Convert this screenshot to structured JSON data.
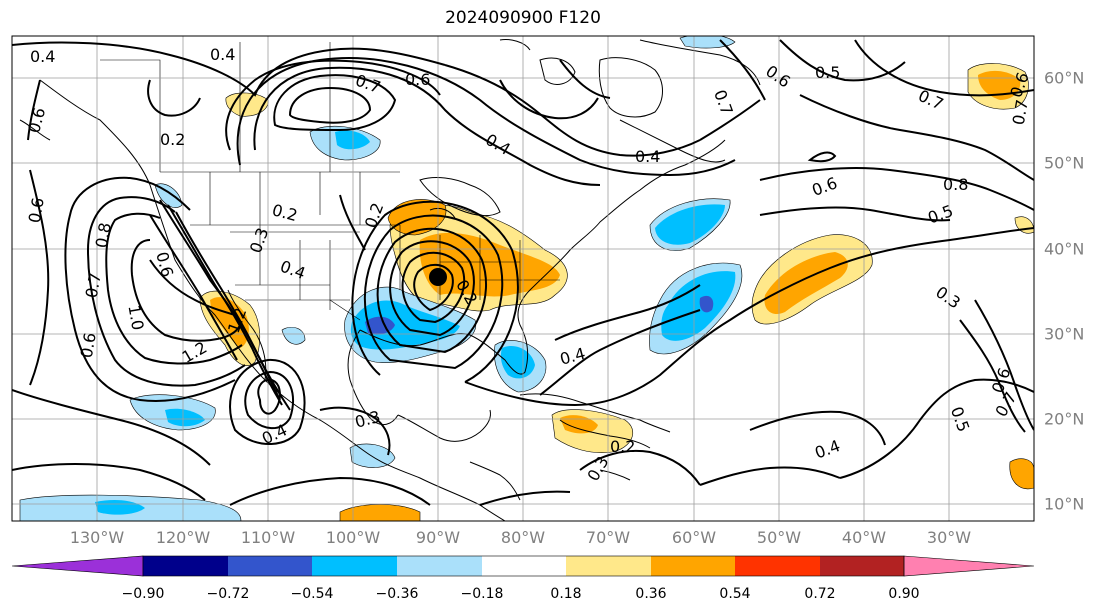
{
  "title": "2024090900 F120",
  "lon_labels": [
    "130°W",
    "120°W",
    "110°W",
    "100°W",
    "90°W",
    "80°W",
    "70°W",
    "60°W",
    "50°W",
    "40°W",
    "30°W"
  ],
  "lat_labels": [
    "60°N",
    "50°N",
    "40°N",
    "30°N",
    "20°N",
    "10°N"
  ],
  "colorbar": {
    "colors": [
      "#9b30d9",
      "#00008b",
      "#3355cc",
      "#00bfff",
      "#aae0fa",
      "#ffffff",
      "#ffe88a",
      "#ffa500",
      "#ff3300",
      "#b22222",
      "#ff80b0"
    ],
    "tick_labels": [
      "−0.90",
      "−0.72",
      "−0.54",
      "−0.36",
      "−0.18",
      "0.18",
      "0.36",
      "0.54",
      "0.72",
      "0.90"
    ]
  },
  "contour_labels": [
    "0.4",
    "0.4",
    "0.7",
    "0.6",
    "0.6",
    "0.5",
    "0.7",
    "0.6",
    "0.2",
    "0.4",
    "0.4",
    "0.7",
    "0.6",
    "0.8",
    "0.5",
    "0.3",
    "0.2",
    "0.3",
    "0.4",
    "0.2",
    "0.6",
    "0.8",
    "0.7",
    "0.6",
    "1.0",
    "1.2",
    "0.6",
    "0.6",
    "0.2",
    "0.4",
    "0.3",
    "0.4",
    "0.2",
    "0.3",
    "0.4",
    "0.5",
    "0.7",
    "0.6",
    "0.7",
    "1.2"
  ]
}
